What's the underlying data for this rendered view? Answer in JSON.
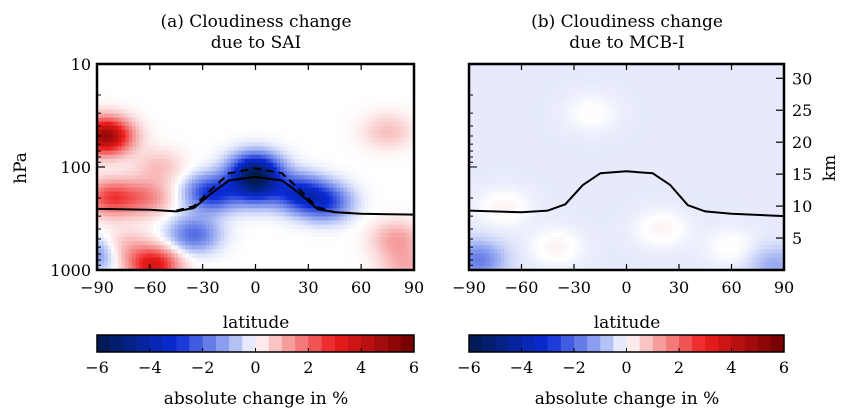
{
  "chart_data": [
    {
      "type": "heatmap",
      "title_line1": "(a) Cloudiness change",
      "title_line2": "due to SAI",
      "xlabel": "latitude",
      "ylabel": "hPa",
      "xticks": [
        "−90",
        "−60",
        "−30",
        "0",
        "30",
        "60",
        "90"
      ],
      "yticks": [
        "10",
        "100",
        "1000"
      ],
      "xlim": [
        -90,
        90
      ],
      "ylim_hPa": [
        1000,
        10
      ],
      "yscale": "log",
      "colorbar": {
        "label": "absolute change in %",
        "ticks": [
          "−6",
          "−4",
          "−2",
          "0",
          "2",
          "4",
          "6"
        ],
        "range": [
          -6,
          6
        ],
        "colormap": "seismic"
      },
      "tropopause_solid_hPa": {
        "lat": [
          -90,
          -60,
          -45,
          -35,
          -25,
          -15,
          0,
          15,
          25,
          35,
          45,
          60,
          90
        ],
        "p": [
          255,
          260,
          270,
          250,
          180,
          135,
          125,
          135,
          180,
          255,
          275,
          285,
          290
        ]
      },
      "tropopause_dashed_hPa": {
        "lat": [
          -45,
          -35,
          -25,
          -15,
          0,
          15,
          25,
          35,
          45,
          55
        ],
        "p": [
          265,
          240,
          165,
          115,
          103,
          115,
          165,
          245,
          275,
          280
        ]
      },
      "anomalies": [
        {
          "lat": -85,
          "p": 50,
          "value": 5.0
        },
        {
          "lat": -82,
          "p": 200,
          "value": 2.5
        },
        {
          "lat": -62,
          "p": 200,
          "value": 1.5
        },
        {
          "lat": -58,
          "p": 900,
          "value": 3.5
        },
        {
          "lat": -55,
          "p": 100,
          "value": 0.8
        },
        {
          "lat": 0,
          "p": 110,
          "value": -4.5
        },
        {
          "lat": 0,
          "p": 160,
          "value": -3.0
        },
        {
          "lat": -25,
          "p": 180,
          "value": -3.0
        },
        {
          "lat": 25,
          "p": 180,
          "value": -3.0
        },
        {
          "lat": -35,
          "p": 450,
          "value": -2.0
        },
        {
          "lat": 40,
          "p": 220,
          "value": -2.5
        },
        {
          "lat": -75,
          "p": 600,
          "value": 1.0
        },
        {
          "lat": 75,
          "p": 45,
          "value": 0.8
        },
        {
          "lat": 80,
          "p": 500,
          "value": 1.2
        },
        {
          "lat": 85,
          "p": 900,
          "value": 1.0
        },
        {
          "lat": -90,
          "p": 700,
          "value": -1.5
        }
      ]
    },
    {
      "type": "heatmap",
      "title_line1": "(b) Cloudiness change",
      "title_line2": "due to MCB-I",
      "xlabel": "latitude",
      "ylabel_right": "km",
      "xticks": [
        "−90",
        "−60",
        "−30",
        "0",
        "30",
        "60",
        "90"
      ],
      "yticks_right": [
        "5",
        "10",
        "15",
        "20",
        "25",
        "30"
      ],
      "km_values": [
        5,
        10,
        15,
        20,
        25,
        30
      ],
      "xlim": [
        -90,
        90
      ],
      "colorbar": {
        "label": "absolute change in %",
        "ticks": [
          "−6",
          "−4",
          "−2",
          "0",
          "2",
          "4",
          "6"
        ],
        "range": [
          -6,
          6
        ],
        "colormap": "seismic"
      },
      "tropopause_solid_hPa": {
        "lat": [
          -90,
          -60,
          -45,
          -35,
          -25,
          -15,
          0,
          15,
          25,
          35,
          45,
          60,
          90
        ],
        "p": [
          265,
          275,
          265,
          230,
          150,
          115,
          110,
          115,
          150,
          235,
          270,
          285,
          300
        ]
      },
      "anomalies": [
        {
          "lat": -85,
          "p": 800,
          "value": -1.5
        },
        {
          "lat": -70,
          "p": 250,
          "value": 0.4
        },
        {
          "lat": -40,
          "p": 600,
          "value": 0.4
        },
        {
          "lat": 20,
          "p": 400,
          "value": 0.4
        },
        {
          "lat": 60,
          "p": 600,
          "value": 0.3
        },
        {
          "lat": -20,
          "p": 30,
          "value": 0.3
        },
        {
          "lat": 85,
          "p": 900,
          "value": -0.8
        }
      ],
      "background_value": -0.25
    }
  ]
}
